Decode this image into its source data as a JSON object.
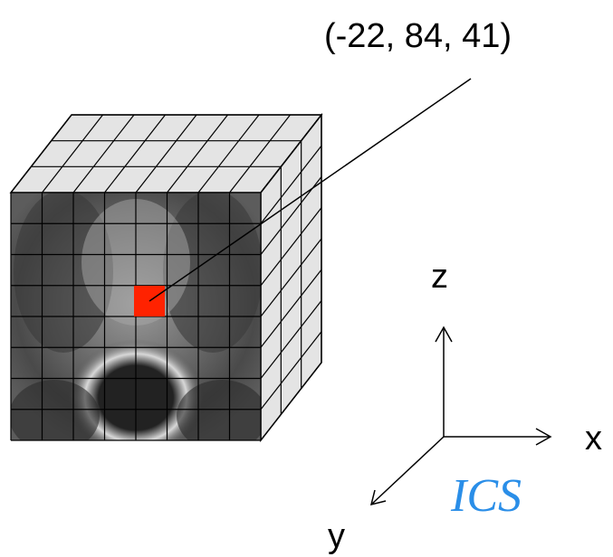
{
  "coordinate_label": "(-22, 84, 41)",
  "axes": {
    "z": "z",
    "x": "x",
    "y": "y"
  },
  "system_label": "ICS"
}
